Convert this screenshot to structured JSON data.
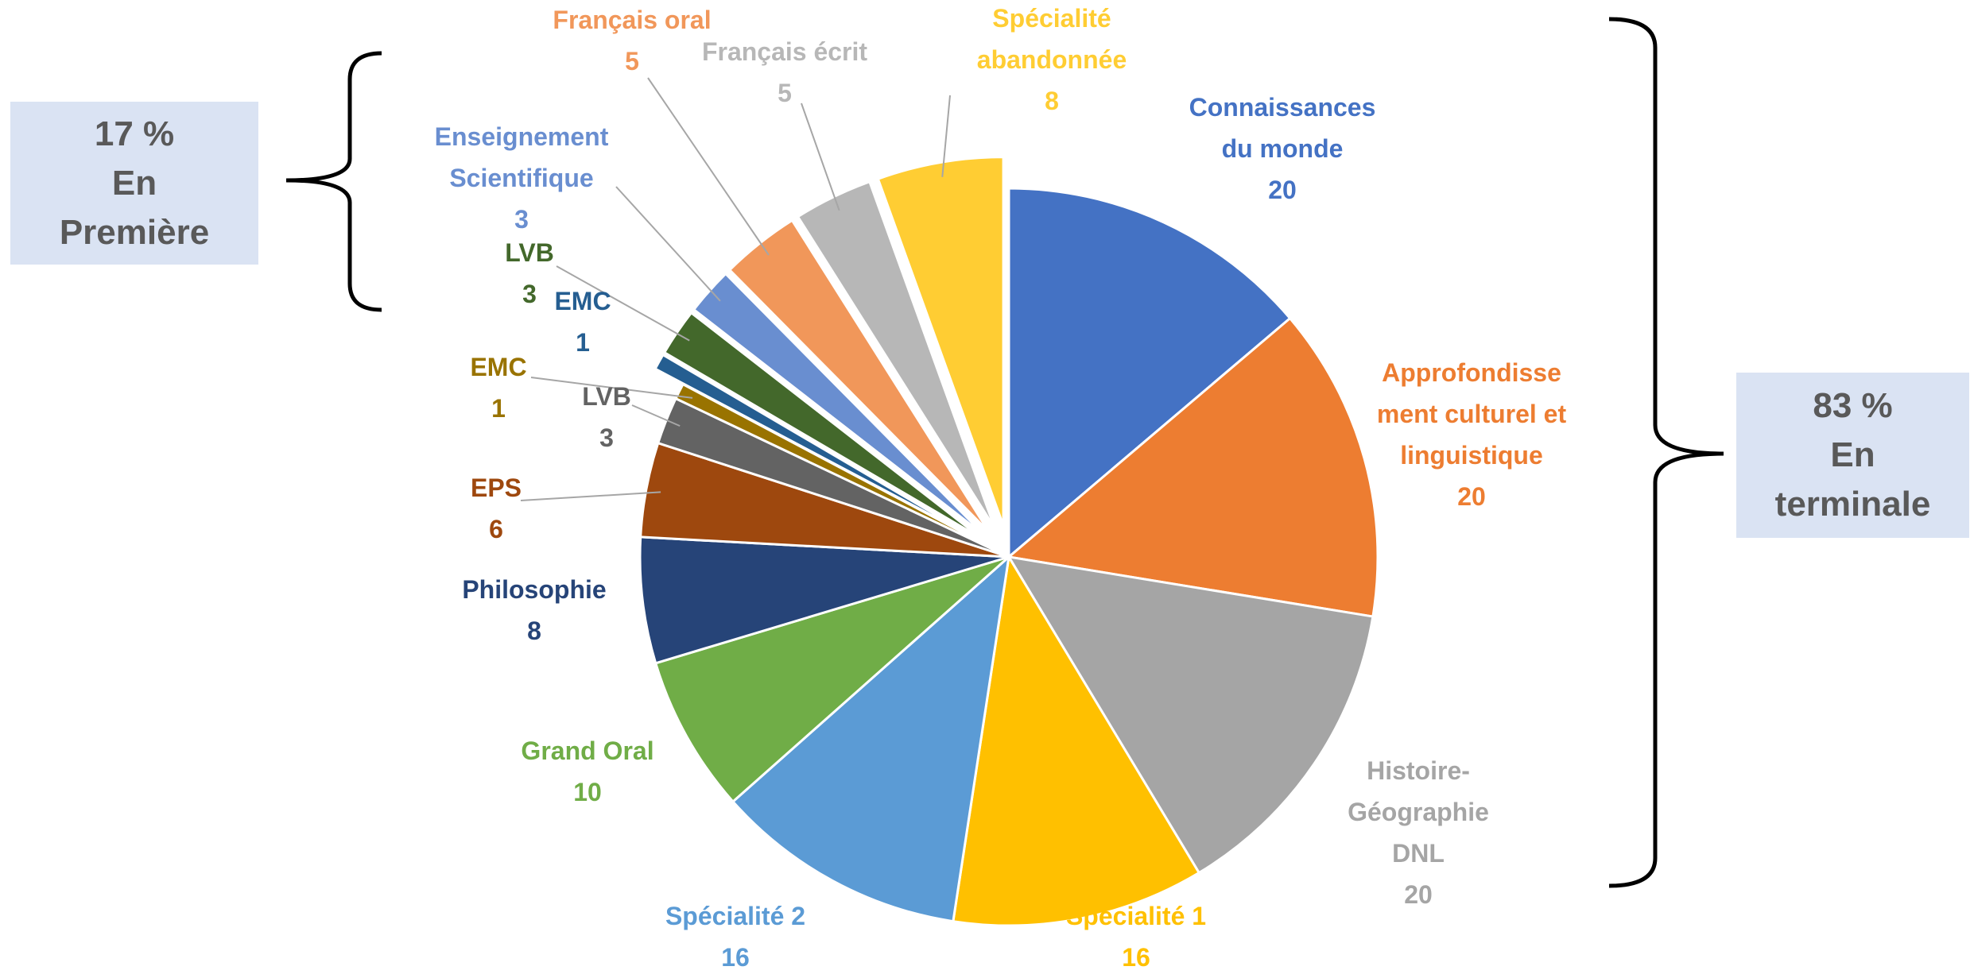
{
  "chart_data": {
    "type": "pie",
    "categories": [
      "Connaissances du monde",
      "Approfondissement culturel et linguistique",
      "Histoire-Géographie DNL",
      "Spécialité 1",
      "Spécialité 2",
      "Grand Oral",
      "Philosophie",
      "EPS",
      "LVB",
      "EMC",
      "EMC",
      "LVB",
      "Enseignement Scientifique",
      "Français oral",
      "Français écrit",
      "Spécialité abandonnée"
    ],
    "values": [
      20,
      20,
      20,
      16,
      16,
      10,
      8,
      6,
      3,
      1,
      1,
      3,
      3,
      5,
      5,
      8
    ],
    "colors": [
      "#4472c4",
      "#ed7d31",
      "#a5a5a5",
      "#ffc000",
      "#5b9bd5",
      "#70ad47",
      "#264478",
      "#9e480e",
      "#636363",
      "#997300",
      "#255e91",
      "#43682b",
      "#698ed0",
      "#f1975a",
      "#b7b7b7",
      "#ffcd33"
    ],
    "exploded": [
      false,
      false,
      false,
      false,
      false,
      false,
      false,
      false,
      false,
      false,
      true,
      true,
      true,
      true,
      true,
      true
    ],
    "annotations": [
      {
        "lines": [
          "17 %",
          "En",
          "Première"
        ]
      },
      {
        "lines": [
          "83 %",
          "En",
          "terminale"
        ]
      }
    ]
  }
}
